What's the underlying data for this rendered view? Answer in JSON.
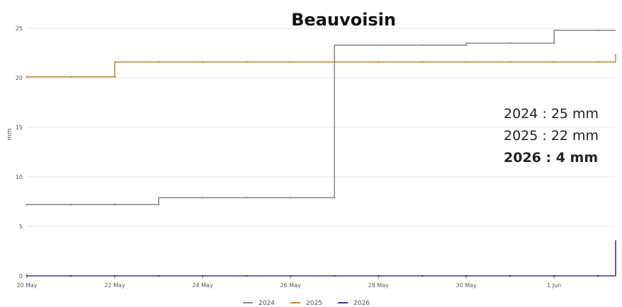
{
  "title": "Beauvoisin",
  "summary": [
    {
      "text": "2024 : 25 mm",
      "bold": false
    },
    {
      "text": "2025 : 22 mm",
      "bold": false
    },
    {
      "text": "2026 : 4 mm",
      "bold": true
    }
  ],
  "chart_data": {
    "type": "line",
    "title": "Beauvoisin",
    "ylabel": "mm",
    "xlabel": "",
    "xlim": [
      0,
      13.4
    ],
    "ylim": [
      0,
      25
    ],
    "x_ticks": [
      {
        "x": 0,
        "label": "20 May"
      },
      {
        "x": 2,
        "label": "22 May"
      },
      {
        "x": 4,
        "label": "24 May"
      },
      {
        "x": 6,
        "label": "26 May"
      },
      {
        "x": 8,
        "label": "28 May"
      },
      {
        "x": 10,
        "label": "30 May"
      },
      {
        "x": 12,
        "label": "1 Jun"
      }
    ],
    "y_ticks": [
      0,
      5,
      10,
      15,
      20,
      25
    ],
    "grid": true,
    "legend_position": "bottom",
    "series": [
      {
        "name": "2024",
        "color": "#8c8c8c",
        "points": [
          [
            0,
            7.2
          ],
          [
            3,
            7.2
          ],
          [
            3,
            7.9
          ],
          [
            7,
            7.9
          ],
          [
            7,
            23.3
          ],
          [
            10,
            23.3
          ],
          [
            10,
            23.5
          ],
          [
            12,
            23.5
          ],
          [
            12,
            24.8
          ],
          [
            13.4,
            24.8
          ]
        ]
      },
      {
        "name": "2025",
        "color": "#c08a40",
        "points": [
          [
            0,
            20.1
          ],
          [
            2,
            20.1
          ],
          [
            2,
            21.6
          ],
          [
            13.4,
            21.6
          ],
          [
            13.4,
            22.4
          ]
        ]
      },
      {
        "name": "2026",
        "color": "#4b2d91",
        "points": [
          [
            0,
            0
          ],
          [
            13.4,
            0
          ],
          [
            13.4,
            3.6
          ]
        ]
      }
    ]
  }
}
